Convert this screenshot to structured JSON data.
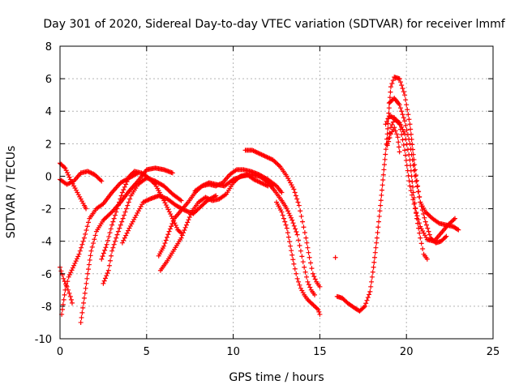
{
  "chart_data": {
    "type": "scatter",
    "title": "Day 301 of 2020, Sidereal Day-to-day VTEC variation (SDTVAR) for receiver lmmf",
    "xlabel": "GPS time / hours",
    "ylabel": "SDTVAR / TECUs",
    "xlim": [
      0,
      25
    ],
    "ylim": [
      -10,
      8
    ],
    "xticks": [
      0,
      5,
      10,
      15,
      20,
      25
    ],
    "yticks": [
      -10,
      -8,
      -6,
      -4,
      -2,
      0,
      2,
      4,
      6,
      8
    ],
    "grid": true,
    "marker": "+",
    "color": "#ff0000",
    "series": [
      {
        "name": "trace-1",
        "points": [
          [
            0,
            0.8
          ],
          [
            0.3,
            0.5
          ],
          [
            0.6,
            -0.2
          ],
          [
            1.0,
            -1.0
          ],
          [
            1.4,
            -1.8
          ],
          [
            1.5,
            -2.0
          ]
        ]
      },
      {
        "name": "trace-2",
        "points": [
          [
            0,
            -0.2
          ],
          [
            0.4,
            -0.5
          ],
          [
            0.8,
            -0.3
          ],
          [
            1.2,
            0.2
          ],
          [
            1.6,
            0.3
          ],
          [
            2.0,
            0.1
          ],
          [
            2.4,
            -0.3
          ]
        ]
      },
      {
        "name": "trace-3",
        "points": [
          [
            0,
            -5.6
          ],
          [
            0.2,
            -6.3
          ],
          [
            0.4,
            -6.8
          ],
          [
            0.6,
            -7.4
          ],
          [
            0.7,
            -7.8
          ]
        ]
      },
      {
        "name": "trace-4",
        "points": [
          [
            0.1,
            -8.5
          ],
          [
            0.3,
            -7.0
          ],
          [
            0.5,
            -6.2
          ],
          [
            0.8,
            -5.5
          ],
          [
            1.1,
            -4.8
          ],
          [
            1.4,
            -3.8
          ],
          [
            1.7,
            -2.6
          ],
          [
            2.1,
            -2.0
          ],
          [
            2.5,
            -1.7
          ],
          [
            3.0,
            -1.0
          ],
          [
            3.5,
            -0.4
          ],
          [
            4.0,
            -0.1
          ],
          [
            4.5,
            0.2
          ]
        ]
      },
      {
        "name": "trace-5",
        "points": [
          [
            1.2,
            -9.0
          ],
          [
            1.4,
            -7.5
          ],
          [
            1.6,
            -6.0
          ],
          [
            1.8,
            -4.6
          ],
          [
            2.1,
            -3.4
          ],
          [
            2.5,
            -2.7
          ],
          [
            3.0,
            -2.2
          ],
          [
            3.5,
            -1.6
          ],
          [
            4.0,
            -0.9
          ],
          [
            4.5,
            -0.3
          ],
          [
            5.0,
            0.4
          ],
          [
            5.5,
            0.5
          ],
          [
            6.0,
            0.4
          ],
          [
            6.5,
            0.2
          ]
        ]
      },
      {
        "name": "trace-6",
        "points": [
          [
            2.5,
            -6.6
          ],
          [
            2.8,
            -5.8
          ],
          [
            3.0,
            -4.6
          ],
          [
            3.3,
            -3.6
          ],
          [
            3.7,
            -2.4
          ],
          [
            4.1,
            -1.2
          ],
          [
            4.5,
            -0.5
          ],
          [
            5.0,
            -0.1
          ],
          [
            5.5,
            -0.3
          ],
          [
            6.0,
            -0.6
          ],
          [
            6.5,
            -1.1
          ],
          [
            7.0,
            -1.5
          ]
        ]
      },
      {
        "name": "trace-7",
        "points": [
          [
            2.4,
            -5.1
          ],
          [
            2.7,
            -4.2
          ],
          [
            3.0,
            -3.0
          ],
          [
            3.3,
            -2.0
          ],
          [
            3.6,
            -1.0
          ],
          [
            4.0,
            0.0
          ],
          [
            4.3,
            0.3
          ],
          [
            4.7,
            0.2
          ],
          [
            5.0,
            0.0
          ],
          [
            5.5,
            -0.5
          ],
          [
            6.0,
            -1.5
          ],
          [
            6.5,
            -2.6
          ],
          [
            6.8,
            -3.3
          ],
          [
            7.0,
            -3.5
          ]
        ]
      },
      {
        "name": "trace-8",
        "points": [
          [
            3.6,
            -4.1
          ],
          [
            4.0,
            -3.2
          ],
          [
            4.4,
            -2.4
          ],
          [
            4.8,
            -1.6
          ],
          [
            5.2,
            -1.4
          ],
          [
            5.7,
            -1.2
          ],
          [
            6.2,
            -1.4
          ],
          [
            6.7,
            -1.8
          ],
          [
            7.2,
            -2.1
          ],
          [
            7.7,
            -2.3
          ],
          [
            8.0,
            -2.0
          ],
          [
            8.5,
            -1.5
          ],
          [
            9.0,
            -1.2
          ]
        ]
      },
      {
        "name": "trace-9",
        "points": [
          [
            5.8,
            -5.8
          ],
          [
            6.2,
            -5.2
          ],
          [
            6.6,
            -4.5
          ],
          [
            7.0,
            -3.8
          ],
          [
            7.3,
            -3.0
          ],
          [
            7.6,
            -2.2
          ],
          [
            8.0,
            -1.6
          ],
          [
            8.4,
            -1.3
          ],
          [
            8.8,
            -1.5
          ],
          [
            9.2,
            -1.4
          ],
          [
            9.6,
            -1.1
          ],
          [
            10.0,
            -0.4
          ],
          [
            10.4,
            0.0
          ],
          [
            10.8,
            0.1
          ],
          [
            11.2,
            -0.2
          ],
          [
            11.6,
            -0.4
          ],
          [
            12.0,
            -0.6
          ]
        ]
      },
      {
        "name": "trace-10",
        "points": [
          [
            5.7,
            -4.9
          ],
          [
            6.0,
            -4.3
          ],
          [
            6.3,
            -3.4
          ],
          [
            6.6,
            -2.6
          ],
          [
            7.0,
            -2.1
          ],
          [
            7.4,
            -1.6
          ],
          [
            7.8,
            -1.0
          ],
          [
            8.2,
            -0.6
          ],
          [
            8.6,
            -0.4
          ],
          [
            9.0,
            -0.5
          ],
          [
            9.5,
            -0.6
          ],
          [
            10.0,
            -0.2
          ],
          [
            10.5,
            0.0
          ],
          [
            11.0,
            0.1
          ],
          [
            11.5,
            0.0
          ],
          [
            12.0,
            -0.3
          ],
          [
            12.3,
            -0.6
          ]
        ]
      },
      {
        "name": "trace-11",
        "points": [
          [
            7.8,
            -0.9
          ],
          [
            8.2,
            -0.6
          ],
          [
            8.6,
            -0.5
          ],
          [
            9.0,
            -0.6
          ],
          [
            9.4,
            -0.4
          ],
          [
            9.8,
            0.1
          ],
          [
            10.2,
            0.4
          ],
          [
            10.6,
            0.4
          ],
          [
            11.0,
            0.3
          ],
          [
            11.5,
            0.1
          ],
          [
            12.0,
            -0.2
          ],
          [
            12.5,
            -0.6
          ],
          [
            12.8,
            -1.0
          ]
        ]
      },
      {
        "name": "trace-12",
        "points": [
          [
            10.7,
            1.6
          ],
          [
            11.1,
            1.6
          ],
          [
            11.5,
            1.4
          ],
          [
            11.9,
            1.2
          ],
          [
            12.3,
            1.0
          ],
          [
            12.7,
            0.6
          ],
          [
            13.1,
            0.0
          ],
          [
            13.5,
            -0.8
          ],
          [
            13.8,
            -1.8
          ],
          [
            14.0,
            -2.8
          ],
          [
            14.2,
            -3.8
          ],
          [
            14.4,
            -5.0
          ],
          [
            14.6,
            -6.0
          ],
          [
            14.8,
            -6.5
          ],
          [
            15.0,
            -6.8
          ]
        ]
      },
      {
        "name": "trace-13",
        "points": [
          [
            11.6,
            0.0
          ],
          [
            12.0,
            -0.4
          ],
          [
            12.4,
            -0.9
          ],
          [
            12.8,
            -1.5
          ],
          [
            13.1,
            -2.0
          ],
          [
            13.4,
            -2.7
          ],
          [
            13.7,
            -3.6
          ],
          [
            13.9,
            -4.6
          ],
          [
            14.1,
            -5.6
          ],
          [
            14.3,
            -6.5
          ],
          [
            14.5,
            -7.0
          ],
          [
            14.7,
            -7.3
          ]
        ]
      },
      {
        "name": "trace-14",
        "points": [
          [
            12.5,
            -1.6
          ],
          [
            12.8,
            -2.2
          ],
          [
            13.1,
            -3.2
          ],
          [
            13.3,
            -4.3
          ],
          [
            13.5,
            -5.4
          ],
          [
            13.7,
            -6.3
          ],
          [
            13.9,
            -6.9
          ],
          [
            14.1,
            -7.3
          ],
          [
            14.3,
            -7.6
          ],
          [
            14.5,
            -7.8
          ],
          [
            14.7,
            -8.0
          ],
          [
            14.9,
            -8.2
          ],
          [
            15.0,
            -8.5
          ]
        ]
      },
      {
        "name": "trace-15",
        "points": [
          [
            15.9,
            -5.0
          ]
        ]
      },
      {
        "name": "trace-16",
        "points": [
          [
            16.0,
            -7.4
          ],
          [
            16.3,
            -7.5
          ],
          [
            16.6,
            -7.8
          ],
          [
            17.0,
            -8.1
          ],
          [
            17.3,
            -8.3
          ],
          [
            17.6,
            -8.0
          ],
          [
            17.9,
            -7.1
          ],
          [
            18.1,
            -5.6
          ],
          [
            18.3,
            -3.8
          ],
          [
            18.5,
            -1.8
          ],
          [
            18.7,
            0.4
          ],
          [
            18.9,
            2.6
          ],
          [
            19.0,
            4.2
          ],
          [
            19.1,
            5.5
          ],
          [
            19.3,
            6.1
          ],
          [
            19.6,
            6.0
          ],
          [
            19.9,
            5.0
          ],
          [
            20.2,
            3.2
          ],
          [
            20.5,
            0.4
          ],
          [
            20.8,
            -1.6
          ],
          [
            21.1,
            -2.8
          ],
          [
            21.4,
            -3.8
          ],
          [
            21.7,
            -4.1
          ],
          [
            22.0,
            -4.0
          ],
          [
            22.3,
            -3.7
          ]
        ]
      },
      {
        "name": "trace-17",
        "points": [
          [
            18.9,
            2.0
          ],
          [
            19.1,
            3.0
          ],
          [
            19.3,
            3.5
          ],
          [
            19.6,
            3.3
          ],
          [
            19.9,
            2.6
          ],
          [
            20.2,
            1.0
          ],
          [
            20.4,
            -1.0
          ],
          [
            20.6,
            -2.6
          ],
          [
            20.8,
            -3.8
          ],
          [
            21.0,
            -4.8
          ],
          [
            21.2,
            -5.1
          ]
        ]
      },
      {
        "name": "trace-18",
        "points": [
          [
            18.8,
            3.2
          ],
          [
            19.0,
            3.7
          ],
          [
            19.3,
            3.6
          ],
          [
            19.6,
            3.2
          ],
          [
            19.9,
            1.6
          ],
          [
            20.2,
            -0.6
          ],
          [
            20.5,
            -2.0
          ],
          [
            20.8,
            -3.1
          ],
          [
            21.2,
            -3.9
          ],
          [
            21.6,
            -4.0
          ],
          [
            22.0,
            -3.5
          ],
          [
            22.4,
            -3.0
          ],
          [
            22.8,
            -2.6
          ]
        ]
      },
      {
        "name": "trace-19",
        "points": [
          [
            18.9,
            1.9
          ],
          [
            19.1,
            2.6
          ],
          [
            19.3,
            3.0
          ],
          [
            19.5,
            2.4
          ],
          [
            19.6,
            1.5
          ]
        ]
      },
      {
        "name": "trace-20",
        "points": [
          [
            19.0,
            4.5
          ],
          [
            19.3,
            4.8
          ],
          [
            19.6,
            4.4
          ],
          [
            19.9,
            3.4
          ],
          [
            20.2,
            2.0
          ],
          [
            20.5,
            0.0
          ],
          [
            20.8,
            -1.6
          ],
          [
            21.1,
            -2.2
          ],
          [
            21.5,
            -2.6
          ],
          [
            21.9,
            -2.9
          ],
          [
            22.3,
            -3.0
          ],
          [
            22.7,
            -3.1
          ],
          [
            23.0,
            -3.3
          ]
        ]
      }
    ]
  }
}
